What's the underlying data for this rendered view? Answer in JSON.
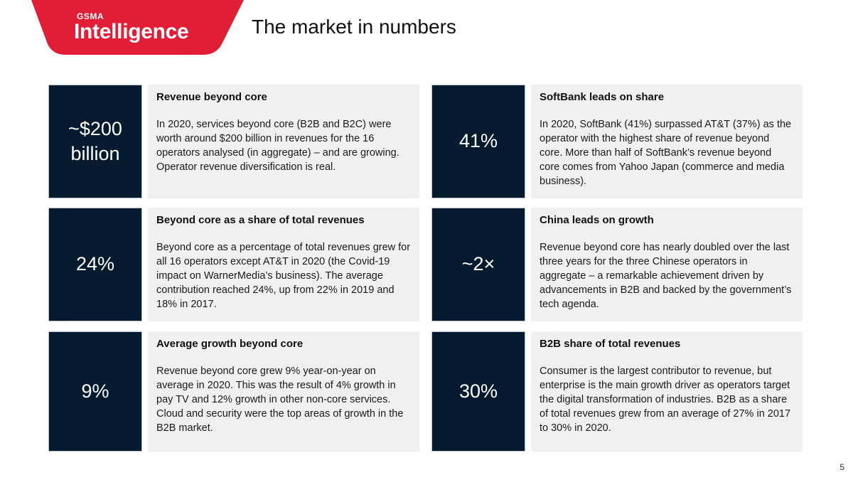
{
  "logo": {
    "sup": "GSMA",
    "main": "Intelligence"
  },
  "colors": {
    "brand_red": "#e21e36",
    "stat_navy": "#041b2f",
    "card_bg": "#f0f0f0"
  },
  "page_title": "The market in numbers",
  "cards": [
    {
      "stat": "~$200 billion",
      "title": "Revenue beyond core",
      "body": "In 2020, services beyond core (B2B and B2C) were worth around $200 billion in revenues for the 16 operators analysed (in aggregate) – and are growing. Operator revenue diversification is real."
    },
    {
      "stat": "41%",
      "title": "SoftBank leads on share",
      "body": "In 2020, SoftBank (41%) surpassed AT&T (37%) as the operator with the highest share of revenue beyond core. More than half of SoftBank’s revenue beyond core comes from Yahoo Japan (commerce and media business)."
    },
    {
      "stat": "24%",
      "title": "Beyond core as a share of total revenues",
      "body": "Beyond core as a percentage of total revenues grew for all 16 operators except AT&T in 2020 (the Covid-19 impact on WarnerMedia’s business). The average contribution reached 24%, up from 22% in 2019 and 18% in 2017."
    },
    {
      "stat": "~2×",
      "title": "China leads on growth",
      "body": "Revenue beyond core has nearly doubled over the last three years for the three Chinese operators in aggregate – a remarkable achievement driven by advancements in B2B and backed by the government’s tech agenda."
    },
    {
      "stat": "9%",
      "title": "Average growth beyond core",
      "body": "Revenue beyond core grew 9% year-on-year on average in 2020. This was the result of 4% growth in pay TV and 12% growth in other non-core services. Cloud and security were the top areas of growth in the B2B market."
    },
    {
      "stat": "30%",
      "title": "B2B share of total revenues",
      "body": "Consumer is the largest contributor to revenue, but enterprise is the main growth driver as operators target the digital transformation of industries. B2B as a share of total revenues grew from an average of 27% in 2017 to 30% in 2020."
    }
  ],
  "page_number": "5"
}
